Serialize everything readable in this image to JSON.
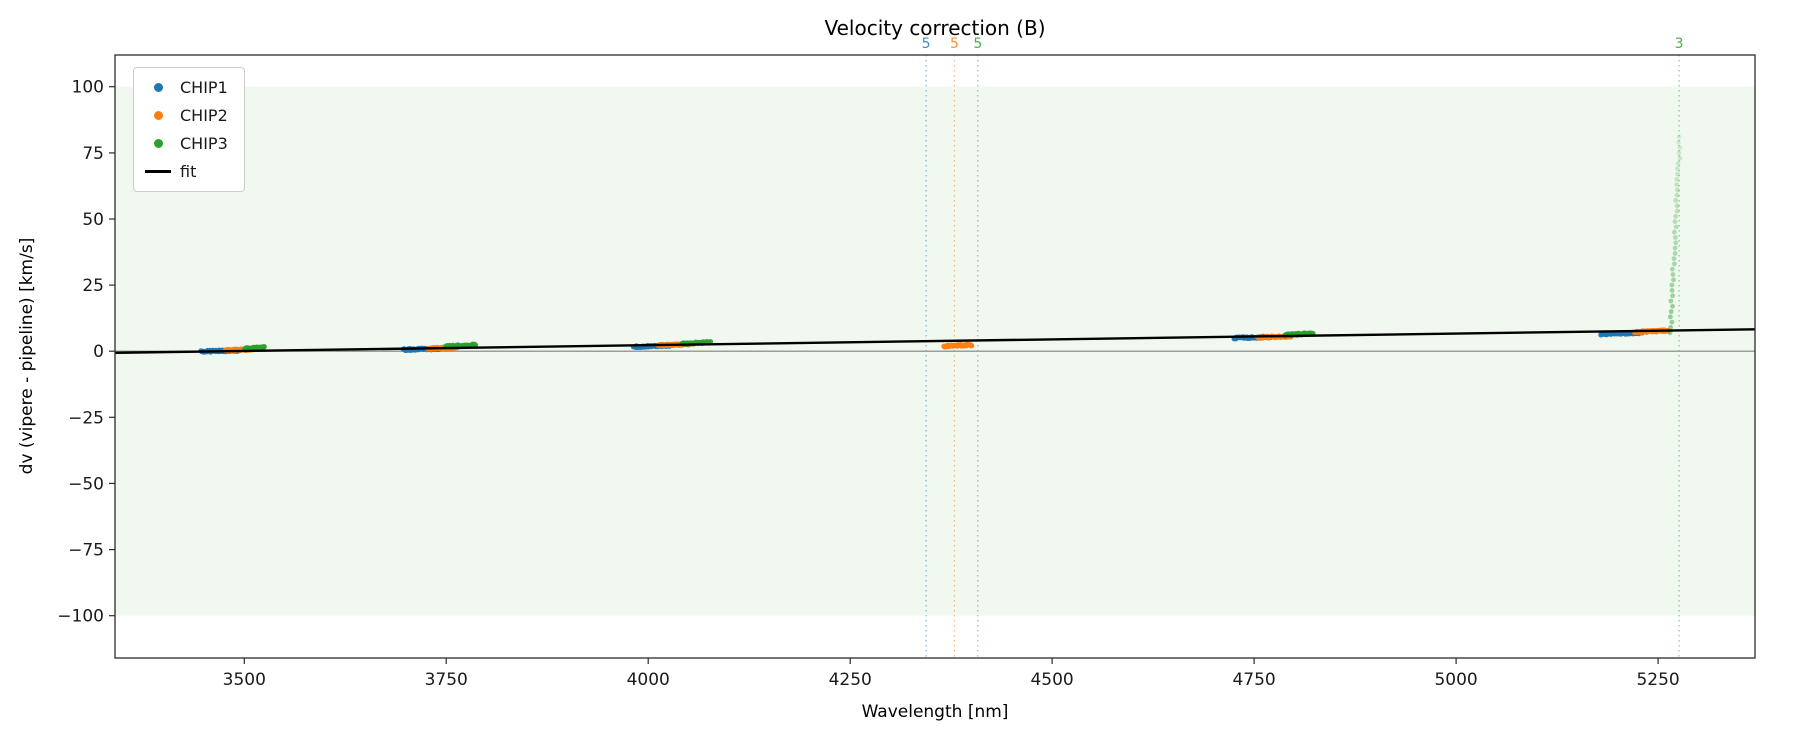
{
  "title": "Velocity correction (B)",
  "legend": [
    {
      "label": "CHIP1",
      "color": "#1f77b4",
      "marker": "dot"
    },
    {
      "label": "CHIP2",
      "color": "#ff7f0e",
      "marker": "dot"
    },
    {
      "label": "CHIP3",
      "color": "#2ca02c",
      "marker": "dot"
    },
    {
      "label": "fit",
      "color": "#000000",
      "marker": "line"
    }
  ],
  "chart_data": {
    "type": "scatter",
    "title": "Velocity correction (B)",
    "xlabel": "Wavelength [nm]",
    "ylabel": "dv (vipere - pipeline) [km/s]",
    "xlim": [
      3340,
      5370
    ],
    "ylim": [
      -116,
      112
    ],
    "xticks": [
      3500,
      3750,
      4000,
      4250,
      4500,
      4750,
      5000,
      5250
    ],
    "yticks": [
      -100,
      -75,
      -50,
      -25,
      0,
      25,
      50,
      75,
      100
    ],
    "grid": false,
    "legend_position": "upper left",
    "shaded_band": {
      "y0": -100,
      "y1": 100,
      "color": "#2ca02c",
      "opacity": 0.07
    },
    "zero_line": {
      "y": 0,
      "color": "#808080"
    },
    "fit_line": {
      "x": [
        3340,
        5370
      ],
      "y": [
        -0.6,
        8.3
      ],
      "color": "#000000",
      "label": "fit"
    },
    "series": [
      {
        "name": "CHIP1",
        "color": "#1f77b4",
        "segments": [
          {
            "x0": 3447,
            "x1": 3492,
            "y0": -0.1,
            "y1": 0.3,
            "n": 55
          },
          {
            "x0": 3697,
            "x1": 3742,
            "y0": 0.6,
            "y1": 1.0,
            "n": 55
          },
          {
            "x0": 3982,
            "x1": 4027,
            "y0": 1.7,
            "y1": 2.2,
            "n": 55
          },
          {
            "x0": 4725,
            "x1": 4772,
            "y0": 5.0,
            "y1": 5.4,
            "n": 55
          },
          {
            "x0": 5180,
            "x1": 5230,
            "y0": 6.4,
            "y1": 7.0,
            "n": 55
          }
        ]
      },
      {
        "name": "CHIP2",
        "color": "#ff7f0e",
        "segments": [
          {
            "x0": 3477,
            "x1": 3513,
            "y0": 0.3,
            "y1": 0.8,
            "n": 45
          },
          {
            "x0": 3728,
            "x1": 3764,
            "y0": 1.0,
            "y1": 1.5,
            "n": 45
          },
          {
            "x0": 4013,
            "x1": 4052,
            "y0": 2.2,
            "y1": 2.7,
            "n": 45
          },
          {
            "x0": 4366,
            "x1": 4400,
            "y0": 1.9,
            "y1": 2.3,
            "n": 40
          },
          {
            "x0": 4755,
            "x1": 4795,
            "y0": 5.2,
            "y1": 5.7,
            "n": 45
          },
          {
            "x0": 5222,
            "x1": 5262,
            "y0": 7.2,
            "y1": 7.8,
            "n": 45
          }
        ]
      },
      {
        "name": "CHIP3",
        "color": "#2ca02c",
        "segments": [
          {
            "x0": 3500,
            "x1": 3524,
            "y0": 0.9,
            "y1": 1.4,
            "n": 30
          },
          {
            "x0": 3750,
            "x1": 3786,
            "y0": 1.8,
            "y1": 2.4,
            "n": 40
          },
          {
            "x0": 4042,
            "x1": 4076,
            "y0": 2.8,
            "y1": 3.4,
            "n": 40
          },
          {
            "x0": 4788,
            "x1": 4822,
            "y0": 6.1,
            "y1": 6.7,
            "n": 40
          }
        ]
      }
    ],
    "outlier_spray": {
      "name": "CHIP3 outliers",
      "color": "#2ca02c",
      "x_base": 5264,
      "x_slope": 0.16,
      "y0": 7,
      "y1": 81,
      "n": 38
    },
    "vlines": [
      {
        "x": 4344,
        "color": "#1f77b4",
        "label": "5"
      },
      {
        "x": 4379,
        "color": "#ff7f0e",
        "label": "5"
      },
      {
        "x": 4408,
        "color": "#2ca02c",
        "label": "5"
      },
      {
        "x": 5276,
        "color": "#2ca02c",
        "label": "3"
      }
    ]
  }
}
